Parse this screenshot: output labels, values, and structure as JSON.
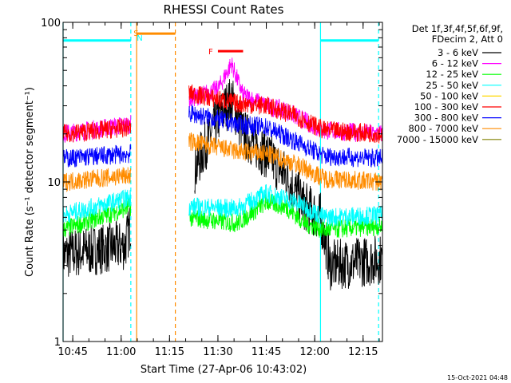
{
  "chart_data": {
    "type": "line",
    "title": "RHESSI Count Rates",
    "xlabel": "Start Time (27-Apr-06 10:43:02)",
    "ylabel": "Count Rate (s⁻¹ detector segment⁻¹)",
    "yscale": "log",
    "ylim": [
      1,
      100
    ],
    "xlim_minutes": [
      10.7,
      12.35
    ],
    "x_ticks": [
      "10:45",
      "11:00",
      "11:15",
      "11:30",
      "11:45",
      "12:00",
      "12:15"
    ],
    "y_ticks": [
      "1",
      "10",
      "100"
    ],
    "legend_header": [
      "Det 1f,3f,4f,5f,6f,9f,",
      "FDecim 2, Att 0"
    ],
    "series": [
      {
        "name": "3 - 6 keV",
        "color": "#000000",
        "points": [
          [
            10.7,
            3.5
          ],
          [
            11.02,
            4.0
          ],
          [
            11.05,
            5.5
          ],
          [
            11.25,
            null
          ],
          [
            11.38,
            12
          ],
          [
            11.5,
            25
          ],
          [
            11.57,
            33
          ],
          [
            11.63,
            20
          ],
          [
            11.75,
            15
          ],
          [
            11.85,
            11
          ],
          [
            11.95,
            7
          ],
          [
            12.03,
            6
          ],
          [
            12.08,
            3.0
          ],
          [
            12.28,
            3.2
          ],
          [
            12.35,
            3.3
          ]
        ]
      },
      {
        "name": "6 - 12 keV",
        "color": "#ff00ff",
        "points": [
          [
            10.7,
            20
          ],
          [
            11.05,
            23
          ],
          [
            11.25,
            null
          ],
          [
            11.35,
            33
          ],
          [
            11.5,
            38
          ],
          [
            11.57,
            55
          ],
          [
            11.63,
            35
          ],
          [
            11.75,
            30
          ],
          [
            11.85,
            28
          ],
          [
            11.95,
            24
          ],
          [
            12.05,
            21
          ],
          [
            12.35,
            20
          ]
        ]
      },
      {
        "name": "12 - 25 keV",
        "color": "#00ff00",
        "points": [
          [
            10.7,
            5
          ],
          [
            11.05,
            7
          ],
          [
            11.25,
            null
          ],
          [
            11.35,
            6
          ],
          [
            11.6,
            5.5
          ],
          [
            11.75,
            7.5
          ],
          [
            11.85,
            7
          ],
          [
            11.95,
            5.5
          ],
          [
            12.05,
            5.0
          ],
          [
            12.35,
            5.3
          ]
        ]
      },
      {
        "name": "25 - 50 keV",
        "color": "#00ffff",
        "points": [
          [
            10.7,
            6.2
          ],
          [
            11.05,
            8
          ],
          [
            11.25,
            null
          ],
          [
            11.35,
            7
          ],
          [
            11.6,
            6.8
          ],
          [
            11.75,
            8.5
          ],
          [
            11.9,
            7.5
          ],
          [
            12.05,
            6.0
          ],
          [
            12.35,
            6.2
          ]
        ]
      },
      {
        "name": "50 - 100 keV",
        "color": "#ffd700",
        "points": []
      },
      {
        "name": "100 - 300 keV",
        "color": "#ff0000",
        "points": [
          [
            10.7,
            20
          ],
          [
            11.05,
            22
          ],
          [
            11.25,
            null
          ],
          [
            11.35,
            36
          ],
          [
            11.6,
            31
          ],
          [
            11.75,
            30
          ],
          [
            11.9,
            26
          ],
          [
            12.05,
            21
          ],
          [
            12.35,
            20
          ]
        ]
      },
      {
        "name": "300 - 800 keV",
        "color": "#0000ff",
        "points": [
          [
            10.7,
            14
          ],
          [
            11.05,
            15
          ],
          [
            11.25,
            null
          ],
          [
            11.35,
            27
          ],
          [
            11.6,
            23
          ],
          [
            11.75,
            22
          ],
          [
            11.9,
            18
          ],
          [
            12.05,
            14.5
          ],
          [
            12.35,
            14
          ]
        ]
      },
      {
        "name": "800 - 7000 keV",
        "color": "#ff8c00",
        "points": [
          [
            10.7,
            10
          ],
          [
            11.05,
            11
          ],
          [
            11.25,
            null
          ],
          [
            11.35,
            18
          ],
          [
            11.6,
            15.5
          ],
          [
            11.75,
            15
          ],
          [
            11.9,
            13
          ],
          [
            12.05,
            10.5
          ],
          [
            12.35,
            10
          ]
        ]
      },
      {
        "name": "7000 - 15000 keV",
        "color": "#808000",
        "points": []
      }
    ],
    "attenuator_bars": [
      {
        "color": "#00ffff",
        "from": 10.7,
        "to": 11.05,
        "y": 77
      },
      {
        "color": "#ff8c00",
        "from": 11.08,
        "to": 11.28,
        "y": 85
      },
      {
        "color": "#00ffff",
        "from": 12.03,
        "to": 12.33,
        "y": 77
      }
    ],
    "flare_bar": {
      "label": "F",
      "color": "#ff0000",
      "from": 11.5,
      "to": 11.63,
      "y": 66
    },
    "markers": [
      {
        "label": "S",
        "color": "#ff8c00"
      },
      {
        "label": "N",
        "color": "#00ffff"
      }
    ],
    "vertical_lines": [
      {
        "x": 10.7,
        "color": "#00ffff",
        "style": "solid"
      },
      {
        "x": 11.05,
        "color": "#00ffff",
        "style": "dashed"
      },
      {
        "x": 11.08,
        "color": "#ff8c00",
        "style": "solid"
      },
      {
        "x": 11.28,
        "color": "#ff8c00",
        "style": "dashed"
      },
      {
        "x": 12.03,
        "color": "#00ffff",
        "style": "solid"
      },
      {
        "x": 12.33,
        "color": "#00ffff",
        "style": "dashed"
      }
    ],
    "footer_timestamp": "15-Oct-2021 04:48"
  }
}
